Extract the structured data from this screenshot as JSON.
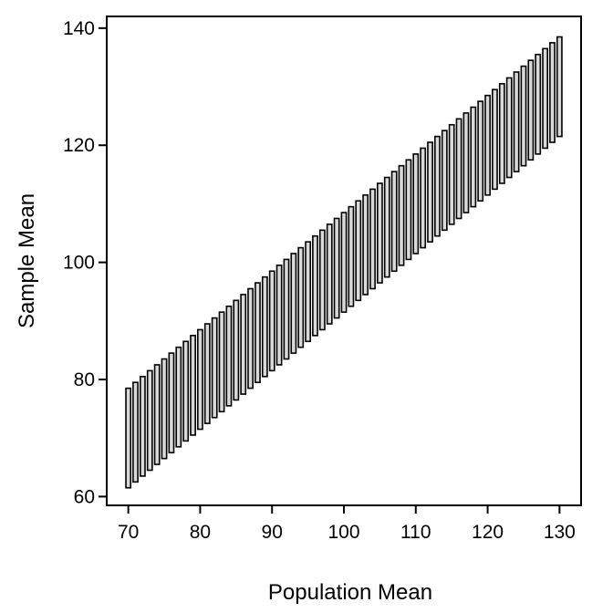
{
  "chart_data": {
    "type": "bar",
    "subtype": "floating-range",
    "xlabel": "Population Mean",
    "ylabel": "Sample Mean",
    "xlim": [
      67,
      133
    ],
    "ylim": [
      58.5,
      142
    ],
    "x_ticks": [
      70,
      80,
      90,
      100,
      110,
      120,
      130
    ],
    "y_ticks": [
      60,
      80,
      100,
      120,
      140
    ],
    "grid": false,
    "legend": "none",
    "x_start": 70,
    "x_end": 130,
    "x_step": 1,
    "lower_offset": -8.5,
    "upper_offset": 8.5,
    "colors": {
      "bar_fill": "#d9d9d9",
      "bar_edge": "#000000"
    }
  }
}
